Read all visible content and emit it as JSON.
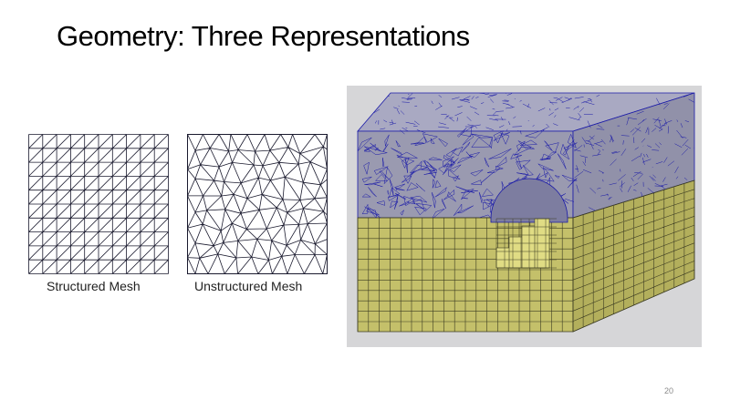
{
  "slide": {
    "title": "Geometry: Three Representations",
    "page_number": "20"
  },
  "figures": [
    {
      "id": "structured",
      "caption": "Structured Mesh",
      "mesh_type": "structured-triangular",
      "grid_divisions": 10
    },
    {
      "id": "unstructured",
      "caption": "Unstructured Mesh",
      "mesh_type": "unstructured-triangular"
    },
    {
      "id": "hybrid",
      "caption": "",
      "mesh_type": "hybrid-tet-hex-block",
      "tet_color": "#7272b8",
      "hex_color": "#b9b560",
      "background": "#d6d6d8"
    }
  ],
  "colors": {
    "mesh_line": "#1a1a2e",
    "tet_line": "#1a1aa8",
    "hex_fill": "#c4c06a",
    "hex_line": "#3c3c22",
    "tet_fill": "#9a9ab0"
  }
}
